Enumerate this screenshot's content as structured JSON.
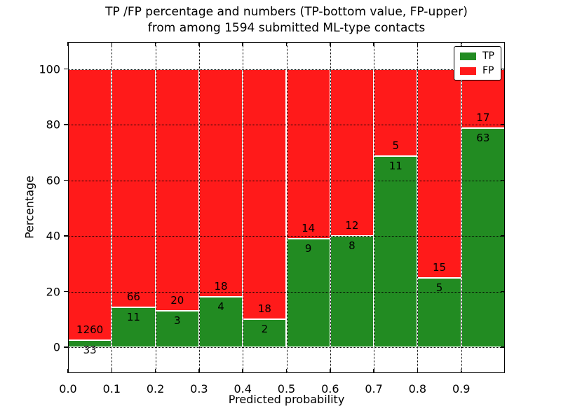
{
  "title": {
    "line1": "TP /FP percentage and numbers (TP-bottom value, FP-upper)",
    "line2": "from among 1594 submitted ML-type contacts"
  },
  "axes": {
    "xlabel": "Predicted probability",
    "ylabel": "Percentage",
    "x_ticks": [
      "0.0",
      "0.1",
      "0.2",
      "0.3",
      "0.4",
      "0.5",
      "0.6",
      "0.7",
      "0.8",
      "0.9"
    ],
    "y_ticks": [
      "0",
      "20",
      "40",
      "60",
      "80",
      "100"
    ],
    "xlim": [
      0.0,
      1.0
    ],
    "ylim": [
      -9.3,
      109.3
    ],
    "grid": "dotted black, horizontal at y ticks and vertical at x ticks"
  },
  "legend": {
    "position": "upper right",
    "items": [
      {
        "label": "TP",
        "color": "#228b22"
      },
      {
        "label": "FP",
        "color": "#ff1a1a"
      }
    ]
  },
  "colors": {
    "tp_green": "#228b22",
    "fp_red": "#ff1a1a",
    "bar_edge": "#ffffff",
    "text": "#000000",
    "background": "#ffffff"
  },
  "chart_data": {
    "type": "bar",
    "stacked": true,
    "orientation": "vertical",
    "title": "TP /FP percentage and numbers (TP-bottom value, FP-upper) from among 1594 submitted ML-type contacts",
    "xlabel": "Predicted probability",
    "ylabel": "Percentage",
    "bin_width": 0.1,
    "bin_starts": [
      0.0,
      0.1,
      0.2,
      0.3,
      0.4,
      0.5,
      0.6,
      0.7,
      0.8,
      0.9
    ],
    "categories": [
      "0.0-0.1",
      "0.1-0.2",
      "0.2-0.3",
      "0.3-0.4",
      "0.4-0.5",
      "0.5-0.6",
      "0.6-0.7",
      "0.7-0.8",
      "0.8-0.9",
      "0.9-1.0"
    ],
    "series": [
      {
        "name": "TP",
        "color": "#228b22",
        "counts": [
          33,
          11,
          3,
          4,
          2,
          9,
          8,
          11,
          5,
          63
        ]
      },
      {
        "name": "FP",
        "color": "#ff1a1a",
        "counts": [
          1260,
          66,
          20,
          18,
          18,
          14,
          12,
          5,
          15,
          17
        ]
      }
    ],
    "bar_value_meaning": "each bin stacked to 100%; TP segment height = TP/(TP+FP)*100, counts printed at segment boundary (TP below, FP above)",
    "tp_percent_per_bin": [
      2.55,
      14.29,
      13.04,
      18.18,
      10.0,
      39.13,
      40.0,
      68.75,
      25.0,
      78.75
    ],
    "total_contacts": 1594,
    "ylim": [
      -9.3,
      109.3
    ],
    "legend_position": "upper right"
  }
}
